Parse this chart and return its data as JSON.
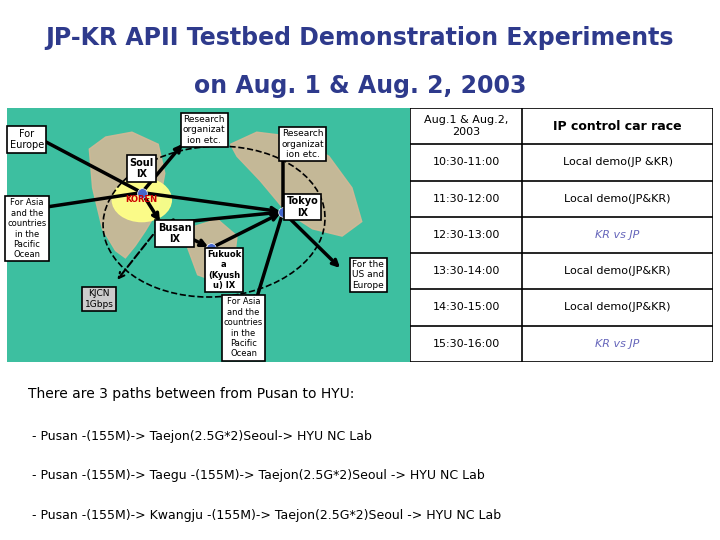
{
  "title_line1": "JP-KR APII Testbed Demonstration Experiments",
  "title_line2": "on Aug. 1 & Aug. 2, 2003",
  "title_bg_color": "#cce8f0",
  "title_text_color": "#2e3a8c",
  "main_bg_color": "#ffffff",
  "sea_color": "#3dbfa0",
  "land_color": "#d4b896",
  "table_header": [
    "Aug.1 & Aug.2,\n2003",
    "IP control car race"
  ],
  "table_rows": [
    [
      "10:30-11:00",
      "Local demo(JP &KR)"
    ],
    [
      "11:30-12:00",
      "Local demo(JP&KR)"
    ],
    [
      "12:30-13:00",
      "KR vs JP"
    ],
    [
      "13:30-14:00",
      "Local demo(JP&KR)"
    ],
    [
      "14:30-15:00",
      "Local demo(JP&KR)"
    ],
    [
      "15:30-16:00",
      "KR vs JP"
    ]
  ],
  "italic_rows": [
    2,
    5
  ],
  "bottom_text_line1": "There are 3 paths between from Pusan to HYU:",
  "bottom_text_line2": " - Pusan -(155M)-> Taejon(2.5G*2)Seoul-> HYU NC Lab",
  "bottom_text_line3": " - Pusan -(155M)-> Taegu -(155M)-> Taejon(2.5G*2)Seoul -> HYU NC Lab",
  "bottom_text_line4": " - Pusan -(155M)-> Kwangju -(155M)-> Taejon(2.5G*2)Seoul -> HYU NC Lab"
}
